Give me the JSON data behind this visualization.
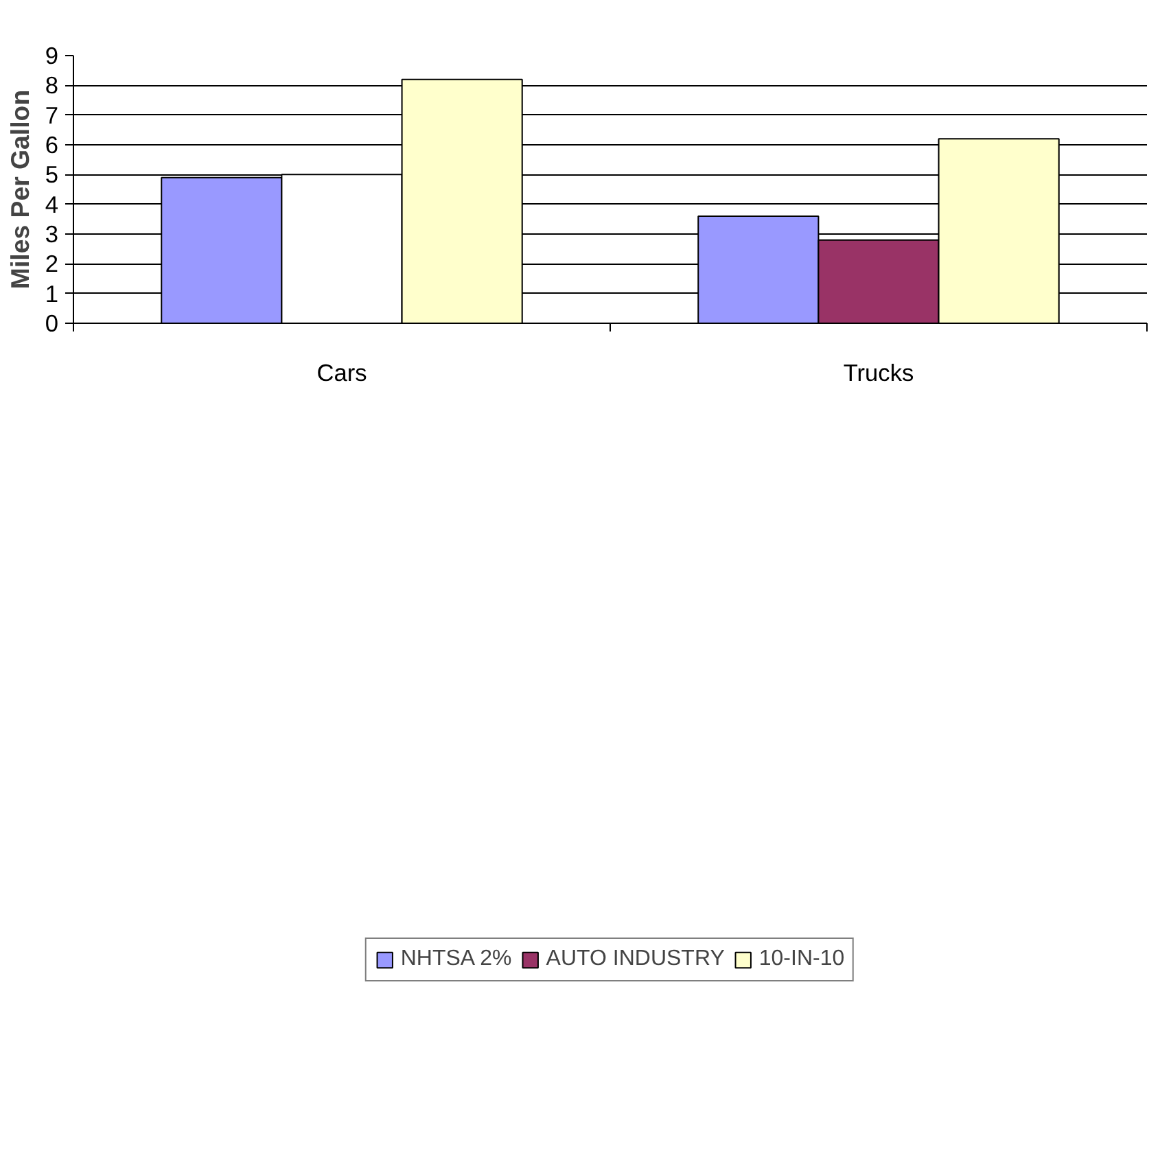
{
  "chart_data": {
    "type": "bar",
    "ylabel": "Miles Per Gallon",
    "categories": [
      "Cars",
      "Trucks"
    ],
    "series": [
      {
        "name": "NHTSA 2%",
        "color": "#9999ff",
        "values": [
          4.9,
          3.6
        ]
      },
      {
        "name": "AUTO INDUSTRY",
        "color": "#993366",
        "colors": [
          "#ffffff",
          "#993366"
        ],
        "values": [
          5.0,
          2.8
        ]
      },
      {
        "name": "10-IN-10",
        "color": "#ffffcc",
        "values": [
          8.2,
          6.2
        ]
      }
    ],
    "ylim": [
      0,
      9
    ],
    "yticks": [
      0,
      1,
      2,
      3,
      4,
      5,
      6,
      7,
      8,
      9
    ],
    "grid": "y",
    "legend": "bottom"
  }
}
